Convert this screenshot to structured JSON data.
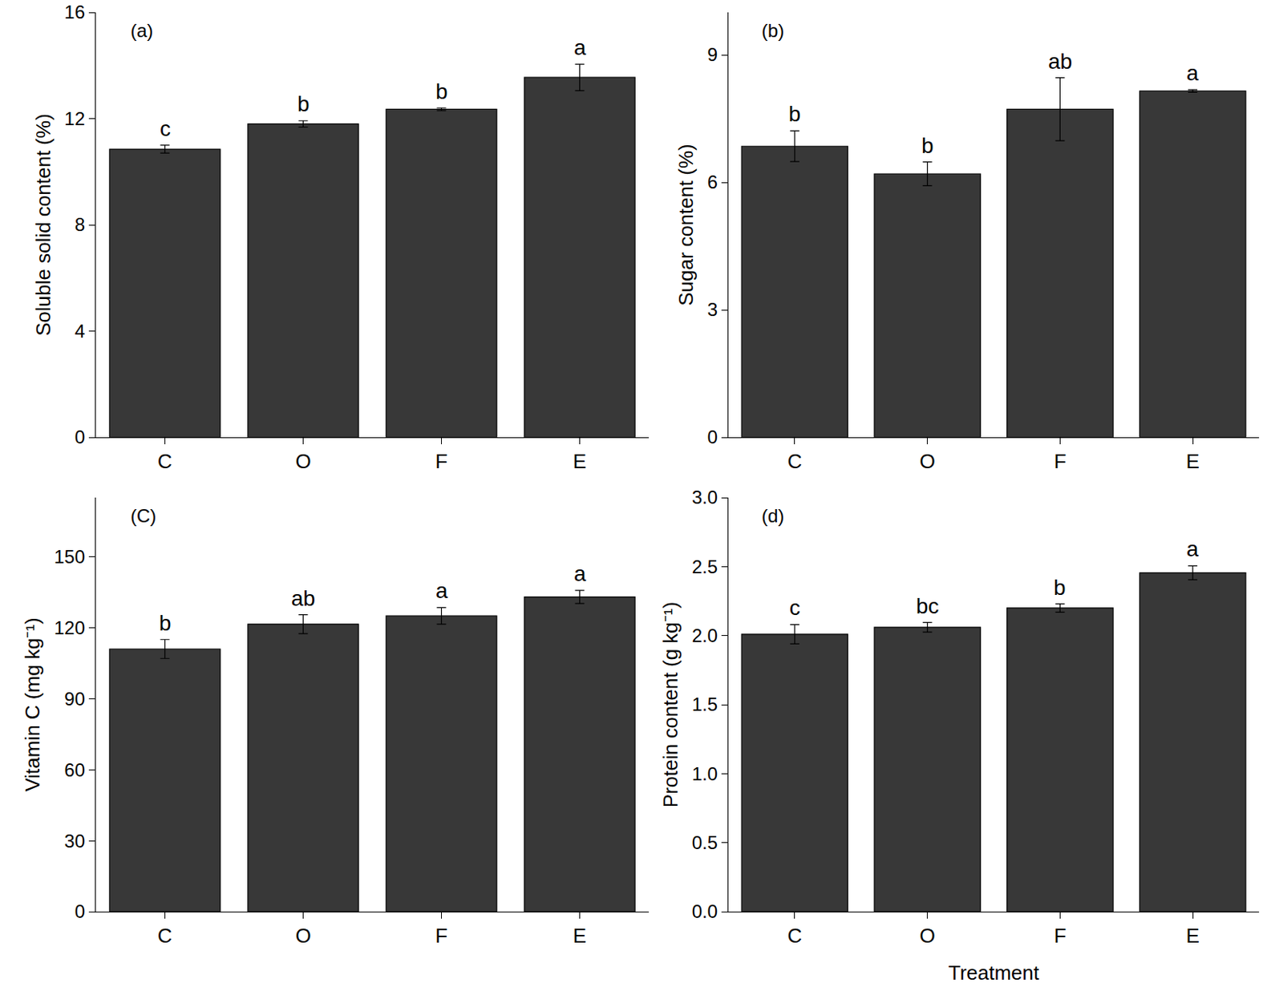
{
  "chart_data": [
    {
      "type": "bar",
      "title": "(a)",
      "ylabel": "Soluble solid content (%)",
      "categories": [
        "C",
        "O",
        "F",
        "E"
      ],
      "values": [
        10.85,
        11.8,
        12.35,
        13.55
      ],
      "errors": [
        0.15,
        0.12,
        0.05,
        0.5
      ],
      "letters": [
        "c",
        "b",
        "b",
        "a"
      ],
      "color": "#383838",
      "ylim": [
        0,
        16
      ],
      "yticks": [
        0,
        4,
        8,
        12,
        16
      ]
    },
    {
      "type": "bar",
      "title": "(b)",
      "ylabel": "Sugar content (%)",
      "categories": [
        "C",
        "O",
        "F",
        "E"
      ],
      "values": [
        6.85,
        6.2,
        7.72,
        8.15
      ],
      "errors": [
        0.36,
        0.28,
        0.74,
        0.03
      ],
      "letters": [
        "b",
        "b",
        "ab",
        "a"
      ],
      "color": "#383838",
      "ylim": [
        0,
        10
      ],
      "yticks": [
        0,
        3,
        6,
        9
      ]
    },
    {
      "type": "bar",
      "title": "(C)",
      "ylabel": "Vitamin C (mg kg⁻¹)",
      "categories": [
        "C",
        "O",
        "F",
        "E"
      ],
      "values": [
        111,
        121.5,
        125,
        133
      ],
      "errors": [
        4,
        4,
        3.5,
        2.8
      ],
      "letters": [
        "b",
        "ab",
        "a",
        "a"
      ],
      "color": "#383838",
      "ylim": [
        0,
        175
      ],
      "yticks": [
        0,
        30,
        60,
        90,
        120,
        150
      ]
    },
    {
      "type": "bar",
      "title": "(d)",
      "ylabel": "Protein content (g kg⁻¹)",
      "xlabel": "Treatment",
      "categories": [
        "C",
        "O",
        "F",
        "E"
      ],
      "values": [
        2.01,
        2.06,
        2.2,
        2.455
      ],
      "errors": [
        0.07,
        0.035,
        0.03,
        0.05
      ],
      "letters": [
        "c",
        "bc",
        "b",
        "a"
      ],
      "color": "#383838",
      "ylim": [
        0,
        3
      ],
      "yticks": [
        {
          "value": 0,
          "label": "0.0"
        },
        0.5,
        {
          "value": 1,
          "label": "1.0"
        },
        1.5,
        {
          "value": 2,
          "label": "2.0"
        },
        2.5,
        {
          "value": 3,
          "label": "3.0"
        }
      ]
    }
  ]
}
